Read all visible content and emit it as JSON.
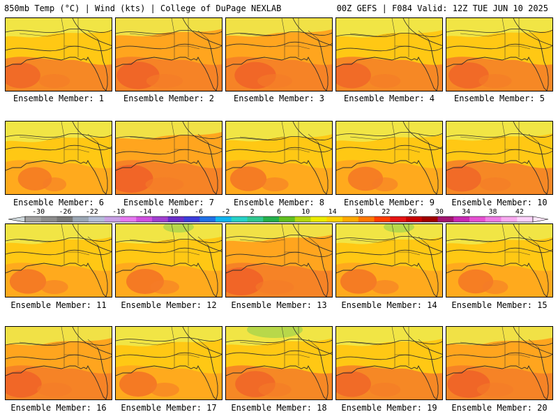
{
  "header": {
    "left": "850mb Temp (°C) | Wind (kts) | College of DuPage NEXLAB",
    "right": "00Z GEFS | F084 Valid: 12Z TUE JUN 10 2025"
  },
  "member_label_prefix": "Ensemble Member:",
  "members": [
    {
      "label": "Ensemble Member: 1",
      "warmth": 0.55
    },
    {
      "label": "Ensemble Member: 2",
      "warmth": 0.7
    },
    {
      "label": "Ensemble Member: 3",
      "warmth": 0.65
    },
    {
      "label": "Ensemble Member: 4",
      "warmth": 0.55
    },
    {
      "label": "Ensemble Member: 5",
      "warmth": 0.6
    },
    {
      "label": "Ensemble Member: 6",
      "warmth": 0.35
    },
    {
      "label": "Ensemble Member: 7",
      "warmth": 0.75
    },
    {
      "label": "Ensemble Member: 8",
      "warmth": 0.45
    },
    {
      "label": "Ensemble Member: 9",
      "warmth": 0.4
    },
    {
      "label": "Ensemble Member: 10",
      "warmth": 0.55
    },
    {
      "label": "Ensemble Member: 11",
      "warmth": 0.45
    },
    {
      "label": "Ensemble Member: 12",
      "warmth": 0.5
    },
    {
      "label": "Ensemble Member: 13",
      "warmth": 0.75
    },
    {
      "label": "Ensemble Member: 14",
      "warmth": 0.45
    },
    {
      "label": "Ensemble Member: 15",
      "warmth": 0.4
    },
    {
      "label": "Ensemble Member: 16",
      "warmth": 0.65
    },
    {
      "label": "Ensemble Member: 17",
      "warmth": 0.5
    },
    {
      "label": "Ensemble Member: 18",
      "warmth": 0.6
    },
    {
      "label": "Ensemble Member: 19",
      "warmth": 0.55
    },
    {
      "label": "Ensemble Member: 20",
      "warmth": 0.7
    }
  ],
  "colorbar": {
    "tick_labels": [
      "-30",
      "-26",
      "-22",
      "-18",
      "-14",
      "-10",
      "-6",
      "-2",
      "2",
      "6",
      "10",
      "14",
      "18",
      "22",
      "26",
      "30",
      "34",
      "38",
      "42"
    ],
    "colors": [
      "#a0a0a0",
      "#8c8c8c",
      "#787878",
      "#9aa6b4",
      "#b4bed8",
      "#c8a0e6",
      "#e678f0",
      "#d050e0",
      "#a040d0",
      "#6a2ec8",
      "#3c3cdc",
      "#2070e6",
      "#10b4f0",
      "#28d2c8",
      "#30c890",
      "#24b04c",
      "#62c020",
      "#b4d810",
      "#ecec00",
      "#ffd200",
      "#ffaa00",
      "#ff7800",
      "#ff3c00",
      "#e61414",
      "#c80000",
      "#a00000",
      "#a01470",
      "#c828b4",
      "#e650d2",
      "#f07ce6",
      "#f8aaf0",
      "#fcd2fa"
    ]
  },
  "map_colors": {
    "cool": "#f0e84a",
    "mild": "#ffc814",
    "warm": "#ffa51e",
    "hot": "#f57c28",
    "hottest": "#ee5a28",
    "green": "#b8d84a",
    "line": "#2b2b2b"
  }
}
